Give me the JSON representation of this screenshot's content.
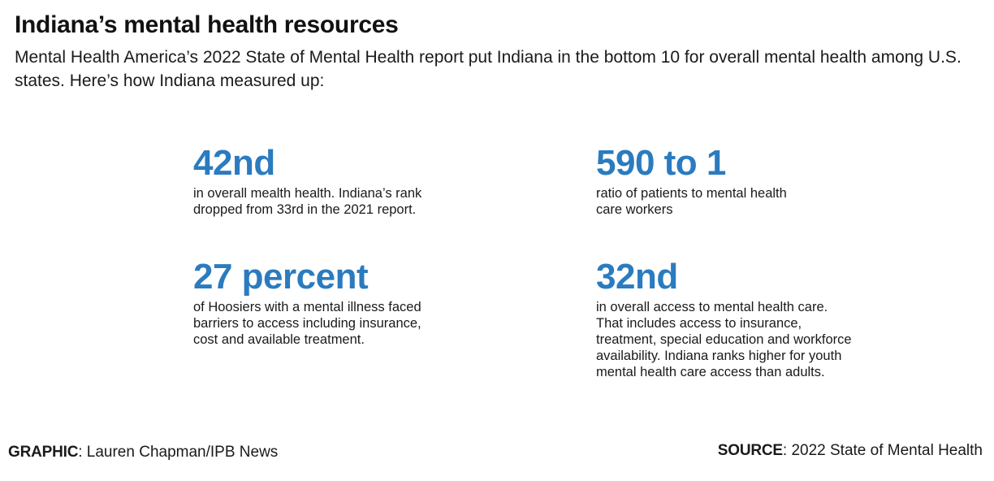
{
  "title": "Indiana’s mental health resources",
  "subtitle": "Mental Health America’s 2022 State of Mental Health report put Indiana in the bottom 10 for overall mental health among U.S. states. Here’s how Indiana measured up:",
  "accent_color": "#2b7bbf",
  "stats": [
    {
      "figure": "42nd",
      "description": "in overall mealth health. Indiana’s rank dropped from 33rd in the 2021 report."
    },
    {
      "figure": "590 to 1",
      "description": "ratio of patients to mental health care workers"
    },
    {
      "figure": "27 percent",
      "description": "of Hoosiers with a mental illness faced barriers to access including insurance, cost and available treatment."
    },
    {
      "figure": "32nd",
      "description": "in overall access to mental health care. That includes access to insurance, treatment, special education and workforce availability. Indiana ranks higher for youth mental health care access than adults."
    }
  ],
  "footer": {
    "graphic_label": "GRAPHIC",
    "graphic_value": ": Lauren Chapman/IPB News",
    "source_label": "SOURCE",
    "source_value": ": 2022 State of Mental Health"
  }
}
